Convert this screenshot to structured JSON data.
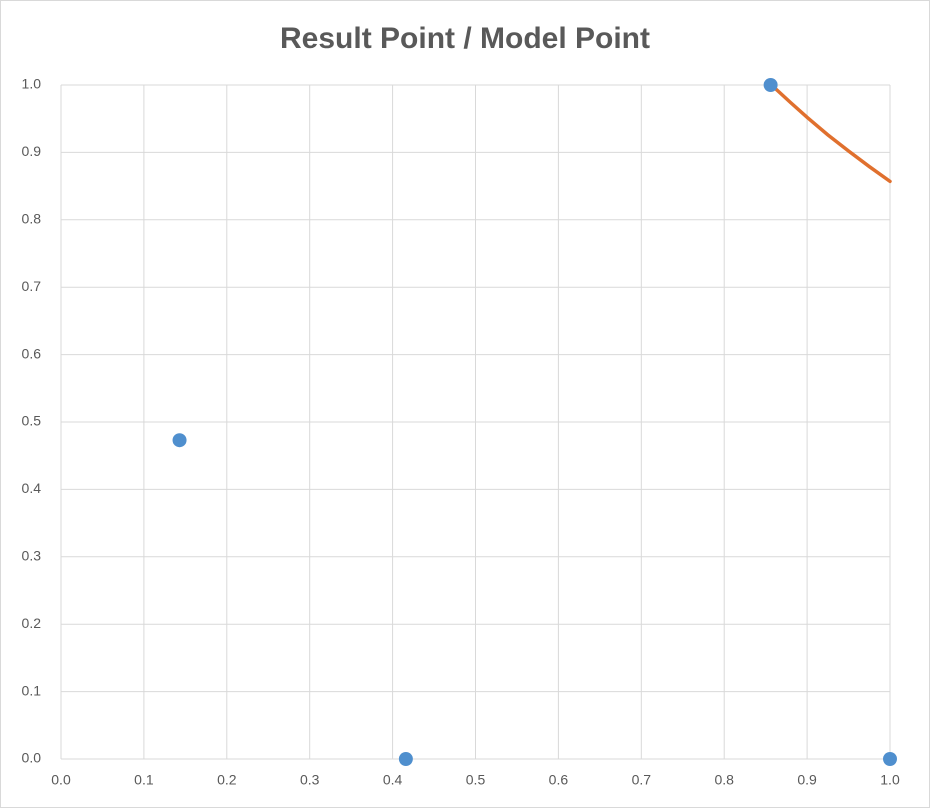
{
  "chart_data": {
    "type": "scatter",
    "title": "Result Point / Model Point",
    "xlim": [
      0,
      1
    ],
    "ylim": [
      0,
      1
    ],
    "xticks": [
      {
        "value": 0,
        "label": "0.0"
      },
      0.1,
      0.2,
      0.3,
      0.4,
      0.5,
      0.6,
      0.7,
      0.8,
      0.9,
      {
        "value": 1,
        "label": "1.0"
      }
    ],
    "yticks": [
      {
        "value": 0,
        "label": "0.0"
      },
      0.1,
      0.2,
      0.3,
      0.4,
      0.5,
      0.6,
      0.7,
      0.8,
      0.9,
      {
        "value": 1,
        "label": "1.0"
      }
    ],
    "grid": true,
    "series": [
      {
        "color": "#4f8fce",
        "mode": "markers",
        "x": [
          0.143,
          0.416,
          0.856,
          1.0
        ],
        "values": [
          0.473,
          0,
          1.0,
          0
        ]
      },
      {
        "color": "#e0702e",
        "mode": "line",
        "x": [
          0.857,
          0.88,
          0.9,
          0.925,
          0.95,
          0.975,
          1.0
        ],
        "values": [
          1.0,
          0.974,
          0.952,
          0.926,
          0.902,
          0.879,
          0.857
        ]
      }
    ]
  }
}
